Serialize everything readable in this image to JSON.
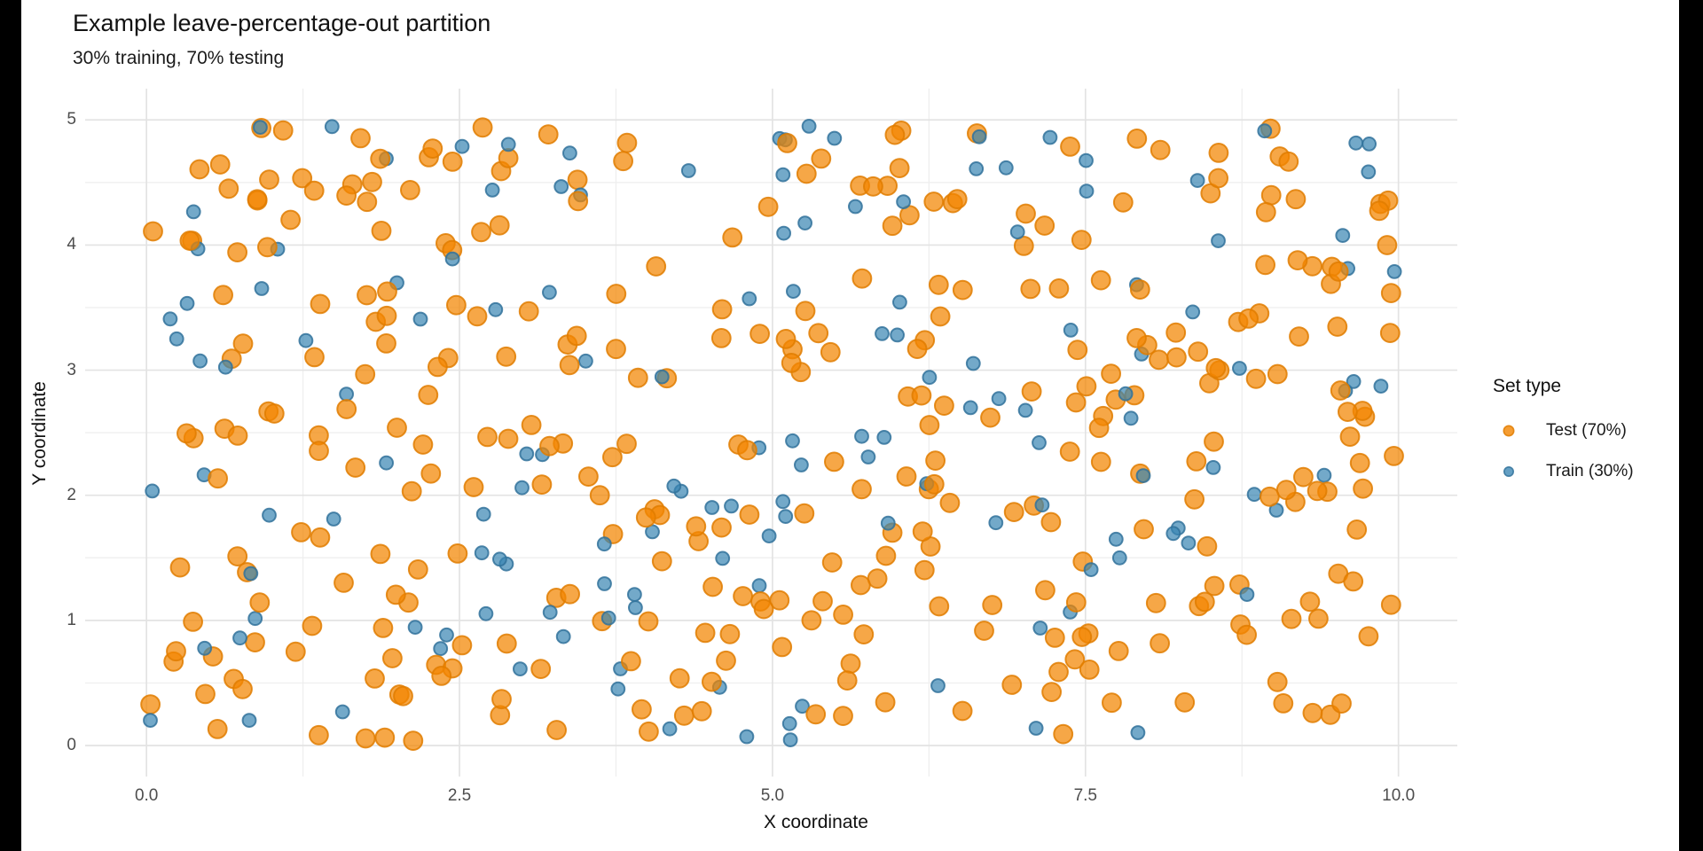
{
  "window": {
    "kind": "plot-render",
    "background": "#FFFFFF",
    "letterbox_color": "#000000"
  },
  "chart_data": {
    "type": "scatter",
    "title": "Example leave-percentage-out partition",
    "subtitle": "30% training, 70% testing",
    "xlabel": "X coordinate",
    "ylabel": "Y coordinate",
    "legend_title": "Set type",
    "legend_position": "right",
    "grid": {
      "visible": true,
      "major_color": "#E3E3E3",
      "minor_color": "#EEEEEE",
      "background": "#FFFFFF"
    },
    "x_range": [
      0,
      10
    ],
    "y_range": [
      0,
      5
    ],
    "xlim": [
      -0.49,
      10.47
    ],
    "ylim": [
      -0.248,
      5.25
    ],
    "x_tick_values": [
      0,
      2.5,
      5,
      7.5,
      10
    ],
    "x_tick_labels": [
      "0.0",
      "2.5",
      "5.0",
      "7.5",
      "10.0"
    ],
    "x_minor_values": [
      1.25,
      3.75,
      6.25,
      8.75
    ],
    "y_tick_values": [
      0,
      1,
      2,
      3,
      4,
      5
    ],
    "y_tick_labels": [
      "0",
      "1",
      "2",
      "3",
      "4",
      "5"
    ],
    "y_minor_values": [
      0.5,
      1.5,
      2.5,
      3.5,
      4.5
    ],
    "total_points": 500,
    "point_distribution": "uniform random over x 0-10, y 0-5",
    "random_seed": 42,
    "series": [
      {
        "name": "Test (70%)",
        "share": 0.7,
        "count": 350,
        "color": "#F28500",
        "stroke": "#E07C00",
        "fill_opacity": 0.72,
        "stroke_opacity": 0.85,
        "radius": 10.4,
        "legend_radius": 5.7
      },
      {
        "name": "Train (30%)",
        "share": 0.3,
        "count": 150,
        "color": "#3884B2",
        "stroke": "#31729B",
        "fill_opacity": 0.7,
        "stroke_opacity": 0.85,
        "radius": 7.4,
        "legend_radius": 5.2
      }
    ]
  }
}
